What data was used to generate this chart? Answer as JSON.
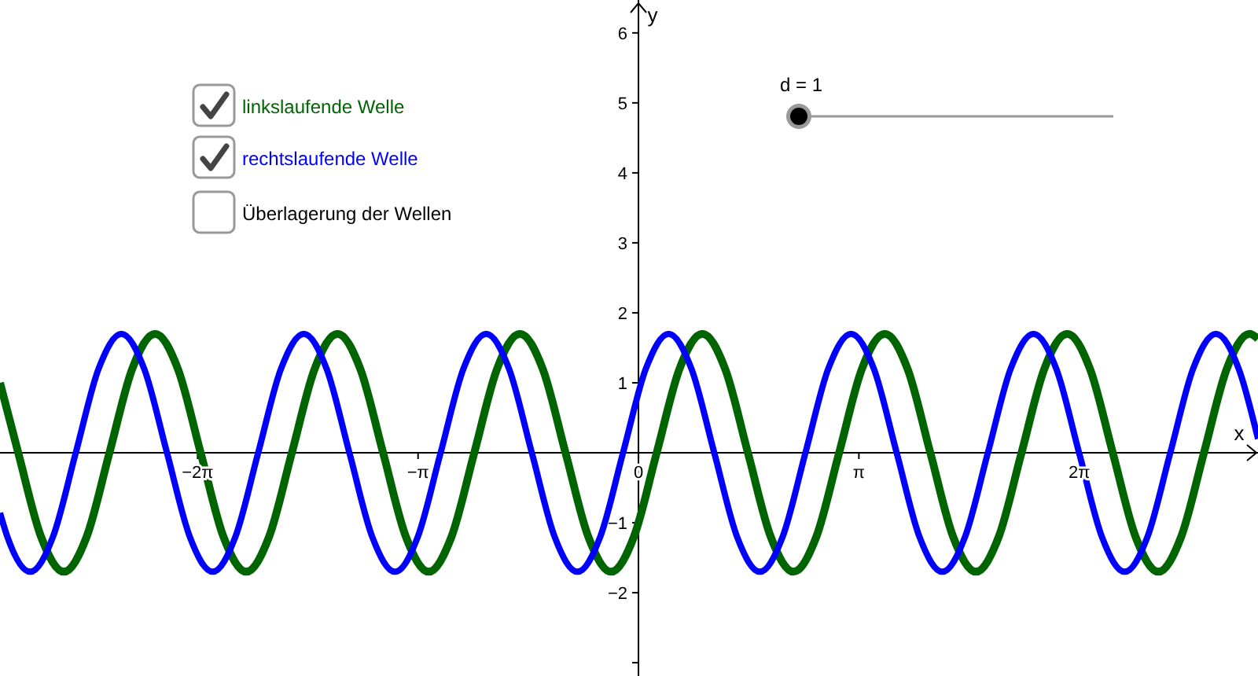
{
  "chart_data": {
    "type": "line",
    "xlabel": "x",
    "ylabel": "y",
    "xlim": [
      -9.1,
      8.83
    ],
    "ylim": [
      -3.19,
      6.47
    ],
    "xticks": [
      {
        "value": -6.2832,
        "label": "−2π"
      },
      {
        "value": -3.1416,
        "label": "−π"
      },
      {
        "value": 0,
        "label": "0"
      },
      {
        "value": 3.1416,
        "label": "π"
      },
      {
        "value": 6.2832,
        "label": "2π"
      }
    ],
    "yticks": [
      {
        "value": -3,
        "label": null
      },
      {
        "value": -2,
        "label": "−2"
      },
      {
        "value": -1,
        "label": "−1"
      },
      1,
      2,
      3,
      4,
      5,
      6
    ],
    "grid": false,
    "legend": "top left",
    "line_style": "solid",
    "marker": "none",
    "annotations": [
      "Überlagerung der Wellen",
      "d = 1"
    ],
    "series": [
      {
        "name": "linkslaufende Welle",
        "color": "#006400",
        "x": [
          -9.1,
          -8.84,
          -8.515,
          -8.19,
          -7.865,
          -7.54,
          -7.215,
          -6.89,
          -6.565,
          -6.24,
          -5.915,
          -5.59,
          -5.265,
          -4.94,
          -4.615,
          -4.29,
          -3.965,
          -3.64,
          -3.315,
          -2.99,
          -2.665,
          -2.34,
          -2.015,
          -1.69,
          -1.365,
          -1.04,
          -0.715,
          -0.39,
          -0.065,
          0.26,
          0.585,
          0.91,
          1.235,
          1.56,
          1.885,
          2.21,
          2.535,
          2.86,
          3.185,
          3.51,
          3.835,
          4.16,
          4.485,
          4.81,
          5.135,
          5.46,
          5.785,
          6.11,
          6.435,
          6.76,
          7.085,
          7.41,
          7.735,
          8.06,
          8.385,
          8.71,
          8.83
        ],
        "values": [
          1.0,
          0,
          -1.2,
          -1.7,
          -1.2,
          0,
          1.2,
          1.7,
          1.2,
          0,
          -1.2,
          -1.7,
          -1.2,
          0,
          1.2,
          1.7,
          1.2,
          0,
          -1.2,
          -1.7,
          -1.2,
          0,
          1.2,
          1.7,
          1.2,
          0,
          -1.2,
          -1.7,
          -1.2,
          0,
          1.2,
          1.7,
          1.2,
          0,
          -1.2,
          -1.7,
          -1.2,
          0,
          1.2,
          1.7,
          1.2,
          0,
          -1.2,
          -1.7,
          -1.2,
          0,
          1.2,
          1.7,
          1.2,
          0,
          -1.2,
          -1.7,
          -1.2,
          0,
          1.2,
          1.7,
          1.63
        ]
      },
      {
        "name": "rechtslaufende Welle",
        "color": "#0000ff",
        "x": [
          -9.1,
          -8.995,
          -8.67,
          -8.345,
          -8.02,
          -7.695,
          -7.37,
          -7.045,
          -6.72,
          -6.395,
          -6.07,
          -5.745,
          -5.42,
          -5.095,
          -4.77,
          -4.445,
          -4.12,
          -3.795,
          -3.47,
          -3.145,
          -2.82,
          -2.495,
          -2.17,
          -1.845,
          -1.52,
          -1.195,
          -0.87,
          -0.545,
          -0.22,
          0.105,
          0.43,
          0.755,
          1.08,
          1.405,
          1.73,
          2.055,
          2.38,
          2.705,
          3.03,
          3.355,
          3.68,
          4.005,
          4.33,
          4.655,
          4.98,
          5.305,
          5.63,
          5.955,
          6.28,
          6.605,
          6.93,
          7.255,
          7.58,
          7.905,
          8.23,
          8.555,
          8.83
        ],
        "values": [
          -0.86,
          -1.2,
          -1.7,
          -1.2,
          0,
          1.2,
          1.7,
          1.2,
          0,
          -1.2,
          -1.7,
          -1.2,
          0,
          1.2,
          1.7,
          1.2,
          0,
          -1.2,
          -1.7,
          -1.2,
          0,
          1.2,
          1.7,
          1.2,
          0,
          -1.2,
          -1.7,
          -1.2,
          0,
          1.2,
          1.7,
          1.2,
          0,
          -1.2,
          -1.7,
          -1.2,
          0,
          1.2,
          1.7,
          1.2,
          0,
          -1.2,
          -1.7,
          -1.2,
          0,
          1.2,
          1.7,
          1.2,
          0,
          -1.2,
          -1.7,
          -1.2,
          0,
          1.2,
          1.7,
          1.2,
          0.2
        ]
      }
    ]
  }
}
